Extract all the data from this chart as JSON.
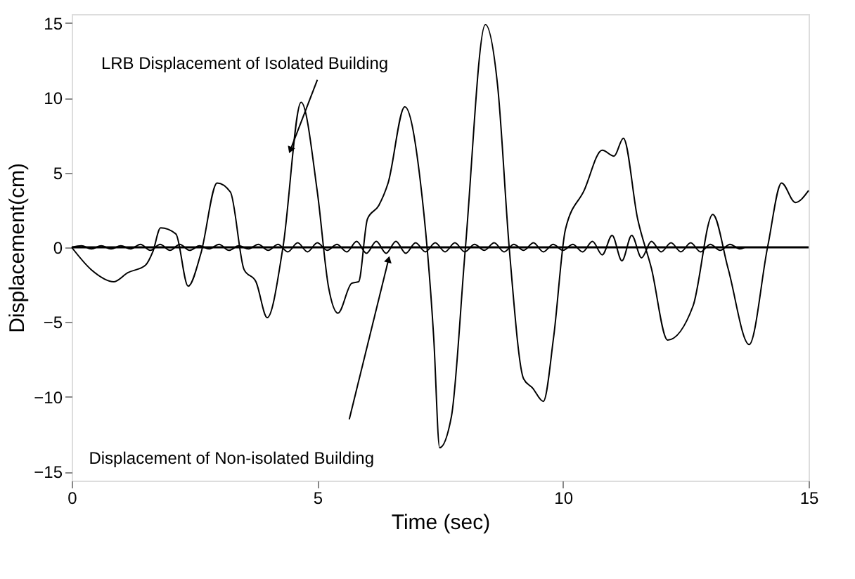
{
  "chart_data": {
    "type": "line",
    "xlabel": "Time (sec)",
    "ylabel": "Displacement(cm)",
    "xlim": [
      0,
      15
    ],
    "xticks": [
      0,
      5,
      10,
      15
    ],
    "ylim": [
      -15.6,
      15.6
    ],
    "yticks": [
      -15,
      -10,
      -5,
      0,
      5,
      10,
      15
    ],
    "grid": false,
    "legend": false,
    "marker": "none",
    "line_style": "solid",
    "annotations": [
      {
        "text": "LRB Displacement of Isolated Building",
        "x": 4.45,
        "y": 6.5
      },
      "Displacement of Non-isolated Building"
    ],
    "ref_lines": [
      {
        "axis": "y",
        "value": 0,
        "color": "#000000"
      }
    ],
    "series": [
      {
        "color": "#000000",
        "x": [
          0,
          0.4,
          0.86,
          1.14,
          1.5,
          1.65,
          1.81,
          2.12,
          2.37,
          2.63,
          2.96,
          3.23,
          3.51,
          3.75,
          3.98,
          4.3,
          4.67,
          5.0,
          5.23,
          5.42,
          5.7,
          5.84,
          6.02,
          6.25,
          6.44,
          6.78,
          7.09,
          7.37,
          7.49,
          7.73,
          8.01,
          8.42,
          8.67,
          8.91,
          9.2,
          9.38,
          9.6,
          9.81,
          10.05,
          10.43,
          10.8,
          11.04,
          11.23,
          11.52,
          11.8,
          12.13,
          12.65,
          13.05,
          13.36,
          13.79,
          14.17,
          14.45,
          14.73,
          15
        ],
        "values": [
          0,
          -1.5,
          -2.3,
          -1.7,
          -1.2,
          -0.3,
          1.3,
          0.9,
          -2.6,
          -0.4,
          4.3,
          3.7,
          -1.5,
          -2.3,
          -4.7,
          0,
          9.7,
          3.7,
          -2.7,
          -4.4,
          -2.4,
          -2.3,
          1.9,
          2.8,
          4.3,
          9.4,
          4.6,
          -6.1,
          -13.4,
          -11.3,
          -0.2,
          14.9,
          10.8,
          -0.2,
          -8.8,
          -9.4,
          -10.3,
          -6.0,
          1.2,
          3.8,
          6.5,
          6.1,
          7.3,
          1.9,
          -1.4,
          -6.2,
          -3.9,
          2.2,
          -1.4,
          -6.5,
          0.1,
          4.3,
          3.0,
          3.8
        ]
      },
      {
        "color": "#000000",
        "x": [
          0,
          0.2,
          0.4,
          0.6,
          0.8,
          1.0,
          1.2,
          1.4,
          1.6,
          1.8,
          2.0,
          2.2,
          2.4,
          2.6,
          2.8,
          3.0,
          3.2,
          3.4,
          3.6,
          3.8,
          4.0,
          4.2,
          4.4,
          4.6,
          4.8,
          5.0,
          5.2,
          5.4,
          5.6,
          5.8,
          6.0,
          6.2,
          6.4,
          6.6,
          6.8,
          7.0,
          7.2,
          7.4,
          7.6,
          7.8,
          8.0,
          8.2,
          8.4,
          8.6,
          8.8,
          9.0,
          9.2,
          9.4,
          9.6,
          9.8,
          10.0,
          10.2,
          10.4,
          10.6,
          10.8,
          11.0,
          11.2,
          11.4,
          11.6,
          11.8,
          12.0,
          12.2,
          12.4,
          12.6,
          12.8,
          13.0,
          13.2,
          13.4,
          13.6,
          13.7
        ],
        "values": [
          0,
          0.1,
          -0.1,
          0.1,
          -0.1,
          0.1,
          -0.1,
          0.2,
          -0.2,
          0.2,
          -0.2,
          0.2,
          -0.2,
          0.1,
          -0.1,
          0.2,
          -0.2,
          0.1,
          -0.1,
          0.2,
          -0.2,
          0.2,
          -0.3,
          0.3,
          -0.3,
          0.3,
          -0.2,
          0.2,
          -0.3,
          0.4,
          -0.4,
          0.4,
          -0.4,
          0.4,
          -0.4,
          0.3,
          -0.3,
          0.3,
          -0.3,
          0.3,
          -0.3,
          0.2,
          -0.2,
          0.3,
          -0.3,
          0.2,
          -0.2,
          0.3,
          -0.3,
          0.2,
          -0.2,
          0.2,
          -0.3,
          0.4,
          -0.5,
          0.8,
          -0.9,
          0.8,
          -0.7,
          0.4,
          -0.3,
          0.3,
          -0.3,
          0.3,
          -0.3,
          0.2,
          -0.2,
          0.2,
          -0.1,
          0
        ]
      }
    ]
  }
}
